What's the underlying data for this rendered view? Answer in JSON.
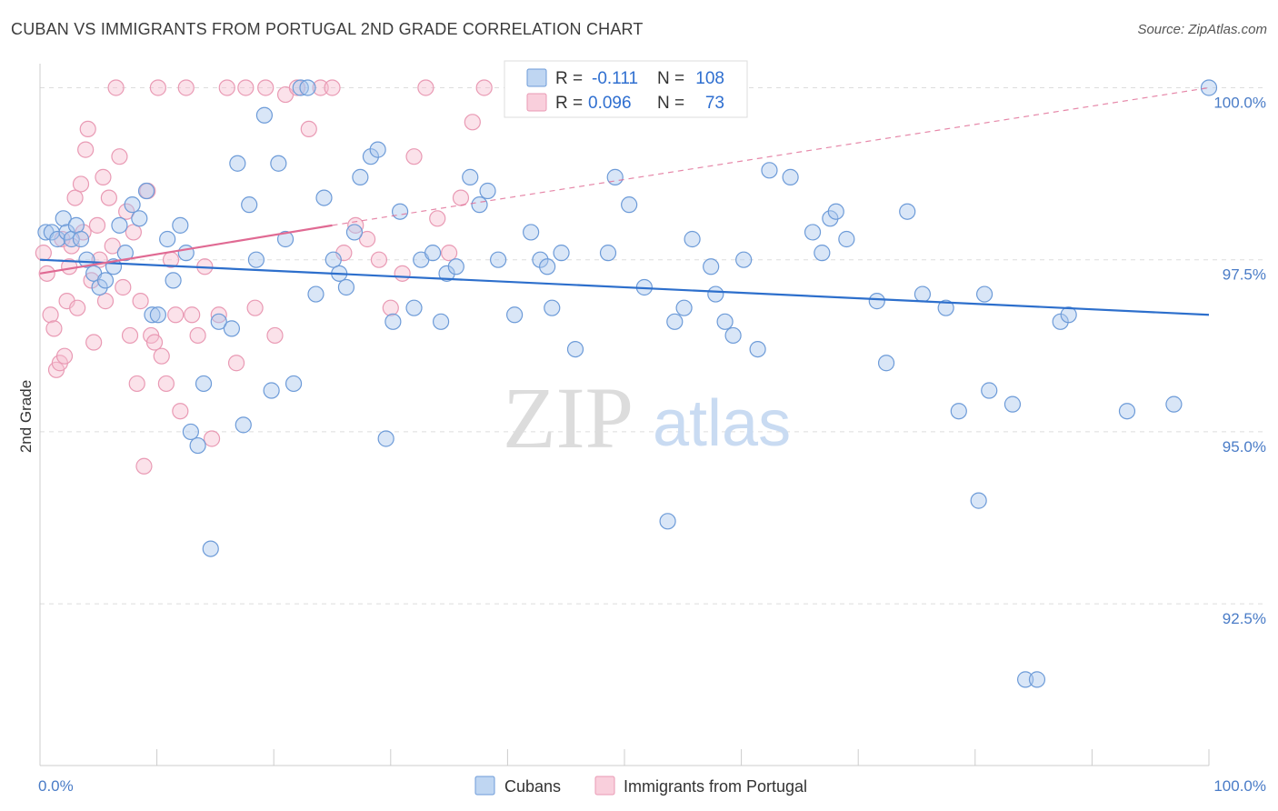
{
  "title": "CUBAN VS IMMIGRANTS FROM PORTUGAL 2ND GRADE CORRELATION CHART",
  "source": "Source: ZipAtlas.com",
  "watermark": {
    "zip": "ZIP",
    "atlas": "atlas"
  },
  "colors": {
    "cubans_fill": "#aac8ee",
    "cubans_stroke": "#6d9bd8",
    "cubans_line": "#2d6fcc",
    "portugal_fill": "#f7bfd0",
    "portugal_stroke": "#e99ab4",
    "portugal_line": "#e06a93",
    "tick_label": "#4a7cc7",
    "grid": "#dddddd"
  },
  "legend": {
    "rows": [
      {
        "r_label": "R =",
        "r_value": "-0.111",
        "n_label": "N =",
        "n_value": "108"
      },
      {
        "r_label": "R =",
        "r_value": "0.096",
        "n_label": "N =",
        "n_value": "73"
      }
    ]
  },
  "chart_data": {
    "type": "scatter",
    "title": "CUBAN VS IMMIGRANTS FROM PORTUGAL 2ND GRADE CORRELATION CHART",
    "xlabel": "",
    "ylabel": "2nd Grade",
    "xlim": [
      0,
      100
    ],
    "ylim": [
      90.15,
      100.35
    ],
    "x_tick_labels": [
      "0.0%",
      "100.0%"
    ],
    "y_ticks": [
      92.5,
      95.0,
      97.5,
      100.0
    ],
    "y_tick_labels": [
      "92.5%",
      "95.0%",
      "97.5%",
      "100.0%"
    ],
    "grid": "horizontal dashed",
    "legend_placement": "top-center and bottom",
    "series": [
      {
        "name": "Cubans",
        "r": -0.111,
        "n": 108,
        "trend": {
          "x": [
            0,
            100
          ],
          "y": [
            97.5,
            96.7
          ]
        },
        "x": [
          0.5,
          1.0,
          1.5,
          2.0,
          2.3,
          2.7,
          3.1,
          3.5,
          4.0,
          4.6,
          5.1,
          5.6,
          6.3,
          6.8,
          7.3,
          7.9,
          8.5,
          9.1,
          9.6,
          10.1,
          10.9,
          11.4,
          12.0,
          12.5,
          12.9,
          13.5,
          14.0,
          14.6,
          15.3,
          16.4,
          16.9,
          17.4,
          17.9,
          18.5,
          19.2,
          19.8,
          20.4,
          21.0,
          21.7,
          22.3,
          22.9,
          23.6,
          24.3,
          25.1,
          25.6,
          26.2,
          26.9,
          27.4,
          28.3,
          28.9,
          29.6,
          30.2,
          30.8,
          32.0,
          32.6,
          33.6,
          34.3,
          34.8,
          35.6,
          36.8,
          37.6,
          38.3,
          39.2,
          40.6,
          42.0,
          42.8,
          43.4,
          43.8,
          44.6,
          45.8,
          48.6,
          49.2,
          50.4,
          51.7,
          53.7,
          54.3,
          55.1,
          55.8,
          57.4,
          57.8,
          58.6,
          59.3,
          60.2,
          61.4,
          62.4,
          64.2,
          66.1,
          66.9,
          67.6,
          68.1,
          69.0,
          71.6,
          72.4,
          74.2,
          75.5,
          77.5,
          78.6,
          80.3,
          80.8,
          81.2,
          83.2,
          84.3,
          85.3,
          87.3,
          88.0,
          93.0,
          97.0,
          100.0
        ],
        "y": [
          97.9,
          97.9,
          97.8,
          98.1,
          97.9,
          97.8,
          98.0,
          97.8,
          97.5,
          97.3,
          97.1,
          97.2,
          97.4,
          98.0,
          97.6,
          98.3,
          98.1,
          98.5,
          96.7,
          96.7,
          97.8,
          97.2,
          98.0,
          97.6,
          95.0,
          94.8,
          95.7,
          93.3,
          96.6,
          96.5,
          98.9,
          95.1,
          98.3,
          97.5,
          99.6,
          95.6,
          98.9,
          97.8,
          95.7,
          100.0,
          100.0,
          97.0,
          98.4,
          97.5,
          97.3,
          97.1,
          97.9,
          98.7,
          99.0,
          99.1,
          94.9,
          96.6,
          98.2,
          96.8,
          97.5,
          97.6,
          96.6,
          97.3,
          97.4,
          98.7,
          98.3,
          98.5,
          97.5,
          96.7,
          97.9,
          97.5,
          97.4,
          96.8,
          97.6,
          96.2,
          97.6,
          98.7,
          98.3,
          97.1,
          93.7,
          96.6,
          96.8,
          97.8,
          97.4,
          97.0,
          96.6,
          96.4,
          97.5,
          96.2,
          98.8,
          98.7,
          97.9,
          97.6,
          98.1,
          98.2,
          97.8,
          96.9,
          96.0,
          98.2,
          97.0,
          96.8,
          95.3,
          94.0,
          97.0,
          95.6,
          95.4,
          91.4,
          91.4,
          96.6,
          96.7,
          95.3,
          95.4,
          100.0
        ]
      },
      {
        "name": "Immigrants from Portugal",
        "r": 0.096,
        "n": 73,
        "trend": {
          "x": [
            0,
            25
          ],
          "y": [
            97.3,
            98.0
          ],
          "dashed_extension": {
            "x": [
              25,
              100
            ],
            "y": [
              98.0,
              100.0
            ]
          }
        },
        "x": [
          0.3,
          0.6,
          0.9,
          1.2,
          1.4,
          1.7,
          1.9,
          2.1,
          2.3,
          2.5,
          2.7,
          3.0,
          3.2,
          3.5,
          3.7,
          3.9,
          4.1,
          4.4,
          4.6,
          4.9,
          5.1,
          5.4,
          5.6,
          5.9,
          6.2,
          6.5,
          6.8,
          7.1,
          7.4,
          7.7,
          8.0,
          8.3,
          8.6,
          8.9,
          9.2,
          9.5,
          9.8,
          10.1,
          10.4,
          10.8,
          11.2,
          11.6,
          12.0,
          12.5,
          13.0,
          13.5,
          14.1,
          14.7,
          15.3,
          16.0,
          16.8,
          17.6,
          18.4,
          19.3,
          20.1,
          21.0,
          22.0,
          23.0,
          24.0,
          25.0,
          26.0,
          27.0,
          28.0,
          29.0,
          30.0,
          31.0,
          32.0,
          33.0,
          34.0,
          35.0,
          36.0,
          37.0,
          38.0
        ],
        "y": [
          97.6,
          97.3,
          96.7,
          96.5,
          95.9,
          96.0,
          97.8,
          96.1,
          96.9,
          97.4,
          97.7,
          98.4,
          96.8,
          98.6,
          97.9,
          99.1,
          99.4,
          97.2,
          96.3,
          98.0,
          97.5,
          98.7,
          96.9,
          98.4,
          97.7,
          100.0,
          99.0,
          97.1,
          98.2,
          96.4,
          97.9,
          95.7,
          96.9,
          94.5,
          98.5,
          96.4,
          96.3,
          100.0,
          96.1,
          95.7,
          97.5,
          96.7,
          95.3,
          100.0,
          96.7,
          96.4,
          97.4,
          94.9,
          96.7,
          100.0,
          96.0,
          100.0,
          96.8,
          100.0,
          96.4,
          99.9,
          100.0,
          99.4,
          100.0,
          100.0,
          97.6,
          98.0,
          97.8,
          97.5,
          96.8,
          97.3,
          99.0,
          100.0,
          98.1,
          97.6,
          98.4,
          99.5,
          100.0
        ]
      }
    ]
  },
  "bottom_legend": [
    "Cubans",
    "Immigrants from Portugal"
  ]
}
